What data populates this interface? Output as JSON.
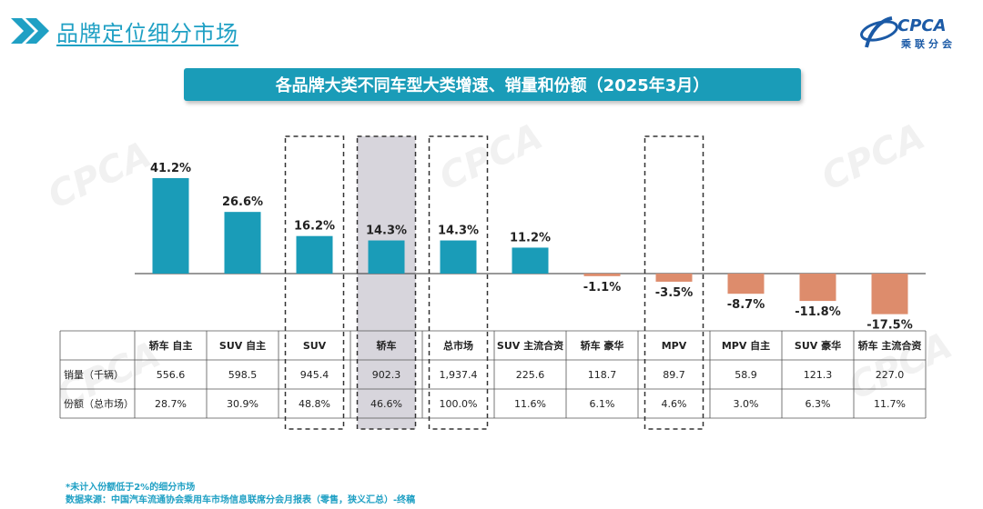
{
  "header": {
    "title": "品牌定位细分市场"
  },
  "logo": {
    "text": "CPCA",
    "sub": "乘联分会"
  },
  "subtitle": "各品牌大类不同车型大类增速、销量和份额（2025年3月）",
  "colors": {
    "positive": "#1a9cb8",
    "negative": "#dd8c6c",
    "accent": "#1fa0c4"
  },
  "chart_data": {
    "type": "bar",
    "categories": [
      "轿车 自主",
      "SUV 自主",
      "SUV",
      "轿车",
      "总市场",
      "SUV 主流合资",
      "轿车 豪华",
      "MPV",
      "MPV 自主",
      "SUV 豪华",
      "轿车 主流合资"
    ],
    "values": [
      41.2,
      26.6,
      16.2,
      14.3,
      14.3,
      11.2,
      -1.1,
      -3.5,
      -8.7,
      -11.8,
      -17.5
    ],
    "value_labels": [
      "41.2%",
      "26.6%",
      "16.2%",
      "14.3%",
      "14.3%",
      "11.2%",
      "-1.1%",
      "-3.5%",
      "-8.7%",
      "-11.8%",
      "-17.5%"
    ],
    "highlighted": [
      2,
      3,
      4,
      7
    ],
    "shaded": [
      3
    ],
    "title": "各品牌大类不同车型大类增速、销量和份额（2025年3月）"
  },
  "table": {
    "rows": [
      {
        "label": "销量（千辆）",
        "values": [
          "556.6",
          "598.5",
          "945.4",
          "902.3",
          "1,937.4",
          "225.6",
          "118.7",
          "89.7",
          "58.9",
          "121.3",
          "227.0"
        ]
      },
      {
        "label": "份额（总市场）",
        "values": [
          "28.7%",
          "30.9%",
          "48.8%",
          "46.6%",
          "100.0%",
          "11.6%",
          "6.1%",
          "4.6%",
          "3.0%",
          "6.3%",
          "11.7%"
        ]
      }
    ]
  },
  "footnotes": [
    "*未计入份额低于2%的细分市场",
    "数据来源：中国汽车流通协会乘用车市场信息联席分会月报表（零售，狭义汇总）-终稿"
  ]
}
